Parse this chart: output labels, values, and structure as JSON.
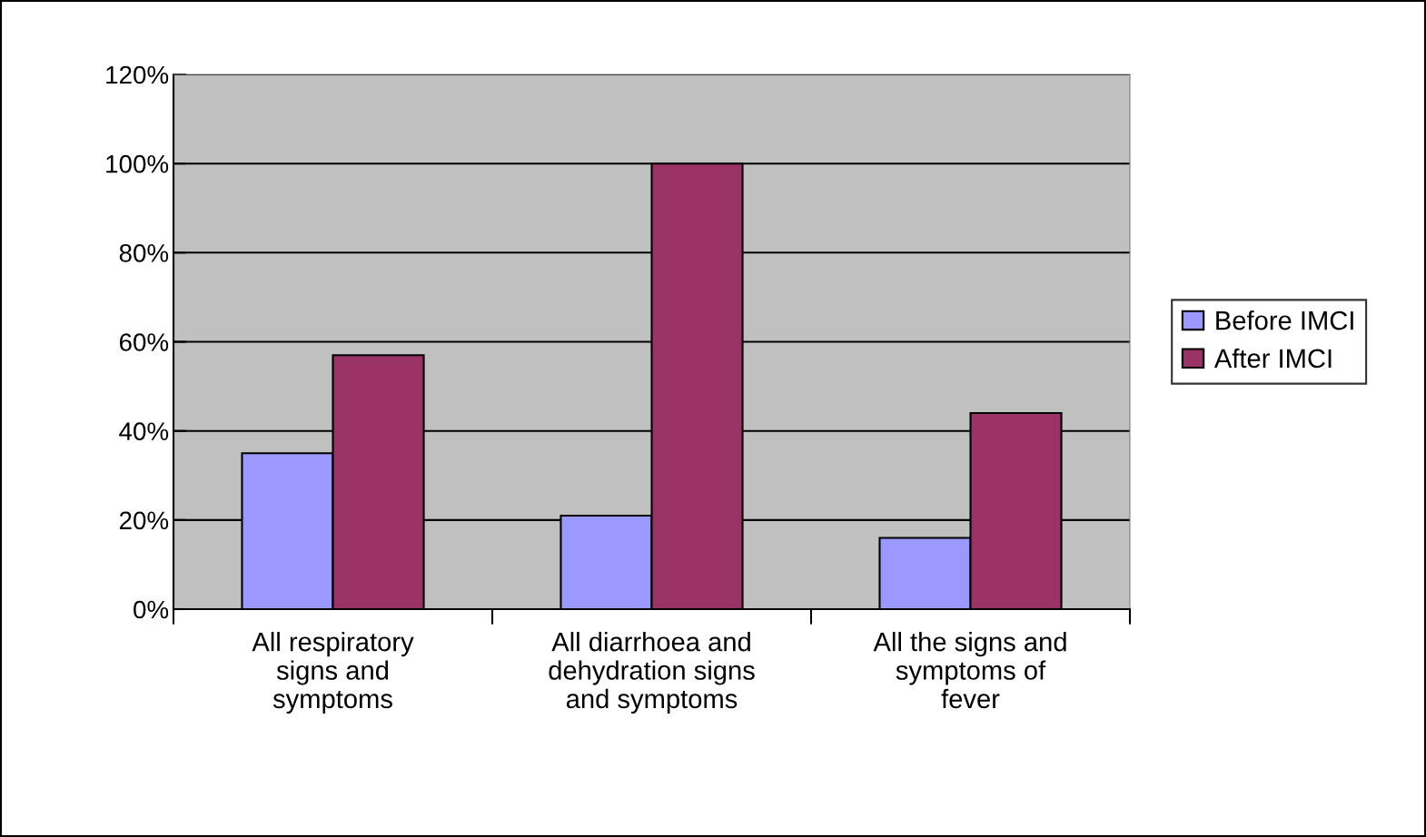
{
  "chart_data": {
    "type": "bar",
    "categories": [
      "All respiratory\nsigns and\nsymptoms",
      "All diarrhoea and\ndehydration signs\nand symptoms",
      "All the signs and\nsymptoms of\nfever"
    ],
    "series": [
      {
        "name": "Before IMCI",
        "color": "#9999ff",
        "values": [
          35,
          21,
          16
        ]
      },
      {
        "name": "After IMCI",
        "color": "#993366",
        "values": [
          57,
          100,
          44
        ]
      }
    ],
    "ylim": [
      0,
      120
    ],
    "yticks": [
      {
        "value": 0,
        "label": "0%"
      },
      {
        "value": 20,
        "label": "20%"
      },
      {
        "value": 40,
        "label": "40%"
      },
      {
        "value": 60,
        "label": "60%"
      },
      {
        "value": 80,
        "label": "80%"
      },
      {
        "value": 100,
        "label": "100%"
      },
      {
        "value": 120,
        "label": "120%"
      }
    ],
    "grid": "y",
    "legend": "right"
  }
}
